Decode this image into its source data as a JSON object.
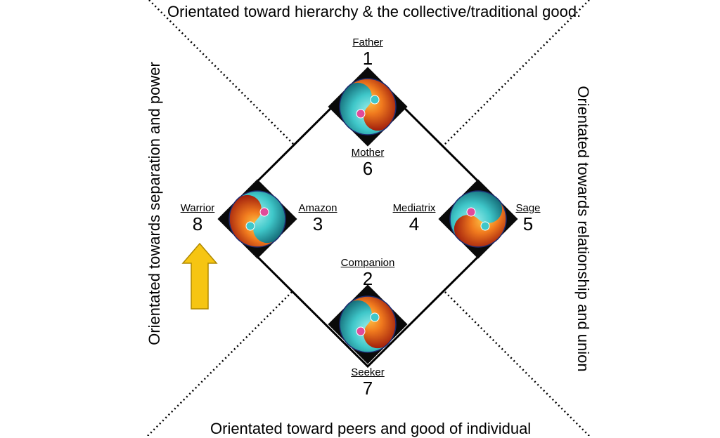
{
  "edges": {
    "top": "Orientated toward hierarchy & the collective/traditional good.",
    "bottom": "Orientated toward peers and good of individual",
    "left": "Orientated towards separation and power",
    "right": "Orientated towards relationship and union"
  },
  "roles": {
    "father": {
      "name": "Father",
      "num": "1"
    },
    "companion": {
      "name": "Companion",
      "num": "2"
    },
    "amazon": {
      "name": "Amazon",
      "num": "3"
    },
    "mediatrix": {
      "name": "Mediatrix",
      "num": "4"
    },
    "sage": {
      "name": "Sage",
      "num": "5"
    },
    "mother": {
      "name": "Mother",
      "num": "6"
    },
    "seeker": {
      "name": "Seeker",
      "num": "7"
    },
    "warrior": {
      "name": "Warrior",
      "num": "8"
    }
  },
  "colors": {
    "arrow_fill": "#f6c512",
    "arrow_stroke": "#b08900",
    "fire": "#e8541c",
    "water": "#3fc7c9"
  }
}
